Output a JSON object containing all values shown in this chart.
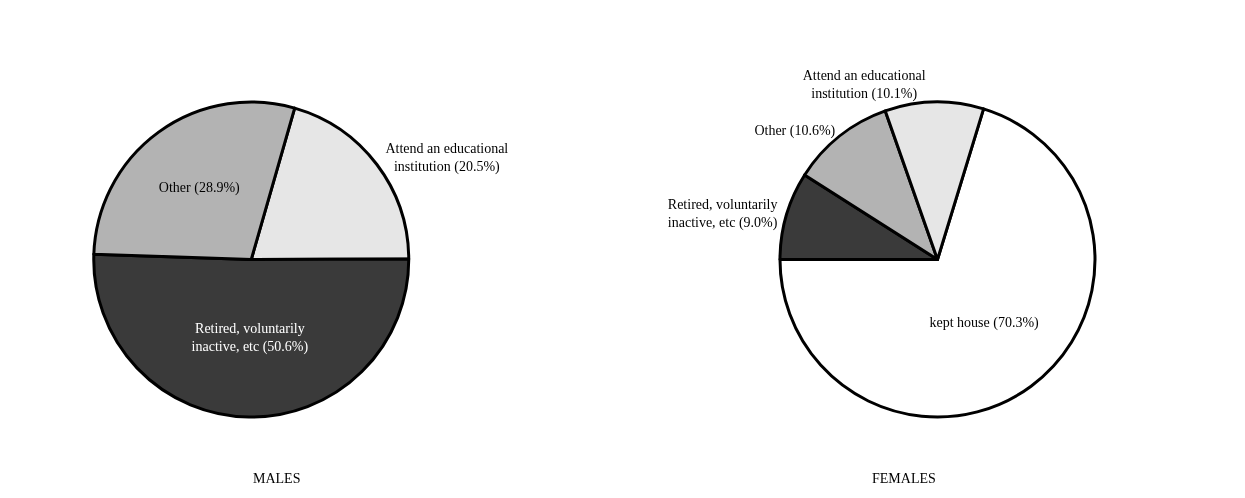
{
  "chart_data": [
    {
      "type": "pie",
      "title": "MALES",
      "categories": [
        "Attend an educational institution (20.5%)",
        "Retired, voluntarily inactive, etc (50.6%)",
        "Other (28.9%)"
      ],
      "values": [
        20.5,
        50.6,
        28.9
      ],
      "colors": [
        "#e6e6e6",
        "#3a3a3a",
        "#b3b3b3"
      ]
    },
    {
      "type": "pie",
      "title": "FEMALES",
      "categories": [
        "kept house (70.3%)",
        "Retired, voluntarily inactive, etc (9.0%)",
        "Other (10.6%)",
        "Attend an educational institution (10.1%)"
      ],
      "values": [
        70.3,
        9.0,
        10.6,
        10.1
      ],
      "colors": [
        "#ffffff",
        "#3a3a3a",
        "#b3b3b3",
        "#e6e6e6"
      ]
    }
  ]
}
